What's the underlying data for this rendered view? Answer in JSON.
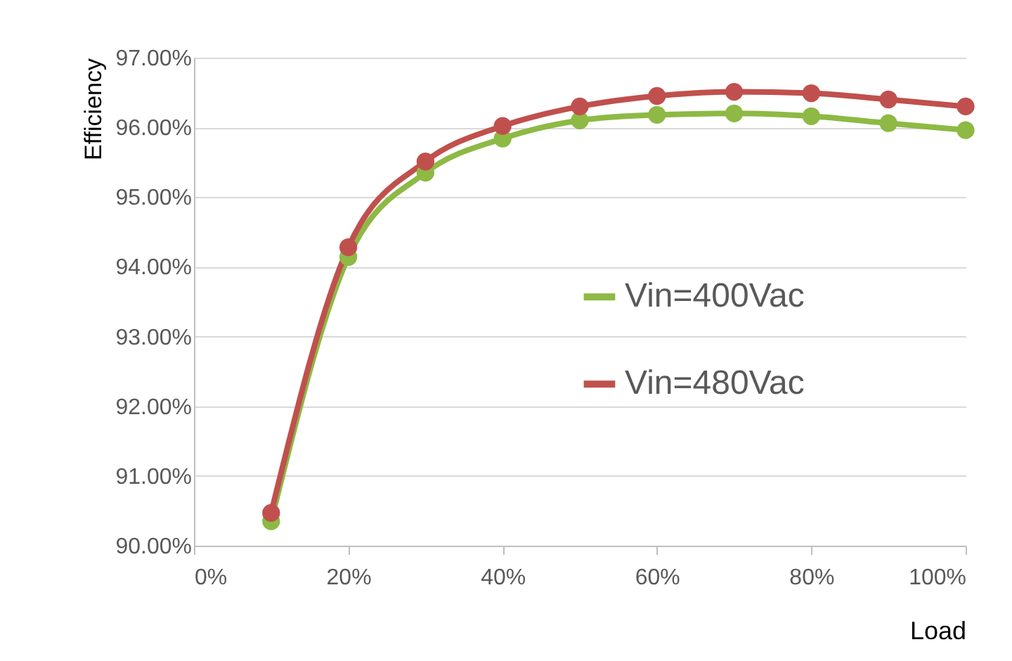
{
  "chart_data": {
    "type": "line",
    "xlabel": "Load",
    "ylabel": "Efficiency",
    "x": [
      10,
      20,
      30,
      40,
      50,
      60,
      70,
      80,
      90,
      100
    ],
    "series": [
      {
        "name": "Vin=400Vac",
        "color": "#8db944",
        "values": [
          90.35,
          94.14,
          95.35,
          95.84,
          96.1,
          96.18,
          96.2,
          96.16,
          96.06,
          95.96
        ]
      },
      {
        "name": "Vin=480Vac",
        "color": "#c0504d",
        "values": [
          90.47,
          94.28,
          95.51,
          96.02,
          96.3,
          96.45,
          96.51,
          96.49,
          96.4,
          96.3
        ]
      }
    ],
    "xlim": [
      0,
      100
    ],
    "xticks": [
      {
        "value": 0,
        "label": "0%"
      },
      {
        "value": 20,
        "label": "20%"
      },
      {
        "value": 40,
        "label": "40%"
      },
      {
        "value": 60,
        "label": "60%"
      },
      {
        "value": 80,
        "label": "80%"
      },
      {
        "value": 100,
        "label": "100%"
      }
    ],
    "ylim": [
      90,
      97
    ],
    "yticks": [
      {
        "value": 90,
        "label": "90.00%"
      },
      {
        "value": 91,
        "label": "91.00%"
      },
      {
        "value": 92,
        "label": "92.00%"
      },
      {
        "value": 93,
        "label": "93.00%"
      },
      {
        "value": 94,
        "label": "94.00%"
      },
      {
        "value": 95,
        "label": "95.00%"
      },
      {
        "value": 96,
        "label": "96.00%"
      },
      {
        "value": 97,
        "label": "97.00%"
      }
    ],
    "grid": "y",
    "legend": "right",
    "marker": "circle",
    "line_style": "solid"
  }
}
